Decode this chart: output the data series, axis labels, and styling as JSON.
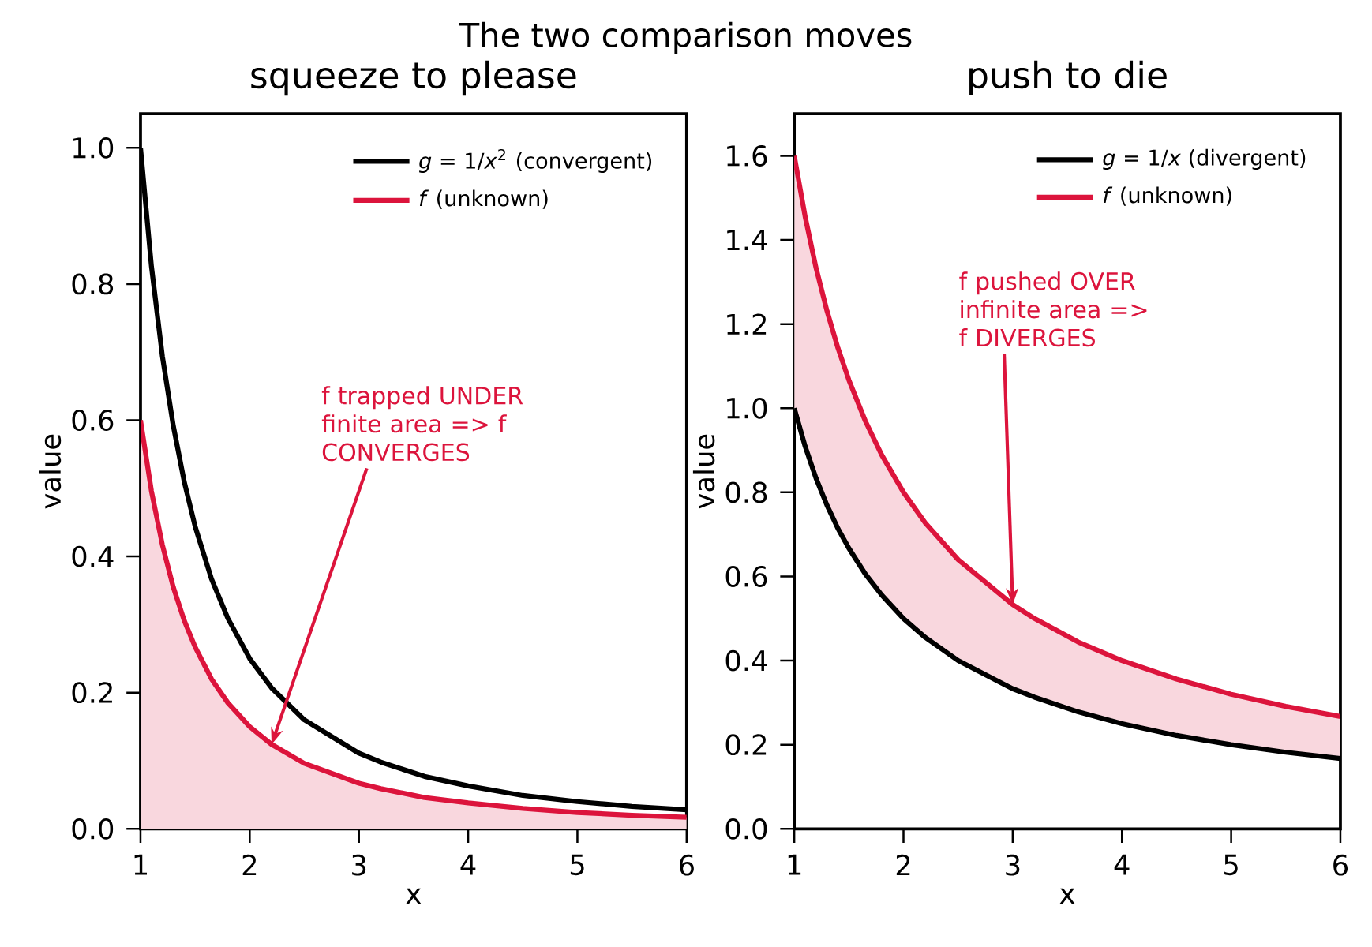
{
  "chart_data": [
    {
      "type": "line",
      "title": "squeeze to please",
      "xlabel": "x",
      "ylabel": "value",
      "xlim": [
        1,
        6
      ],
      "ylim": [
        0,
        1.05
      ],
      "xticks": [
        1,
        2,
        3,
        4,
        5,
        6
      ],
      "yticks": [
        {
          "value": 0,
          "label": "0.0"
        },
        {
          "value": 0.2,
          "label": "0.2"
        },
        {
          "value": 0.4,
          "label": "0.4"
        },
        {
          "value": 0.6,
          "label": "0.6"
        },
        {
          "value": 0.8,
          "label": "0.8"
        },
        {
          "value": 1.0,
          "label": "1.0"
        }
      ],
      "legend": "top right",
      "grid": false,
      "x": [
        1,
        1.1,
        1.2,
        1.3,
        1.4,
        1.5,
        1.65,
        1.8,
        2,
        2.2,
        2.5,
        3,
        3.2,
        3.6,
        4,
        4.5,
        5,
        5.5,
        6
      ],
      "series": [
        {
          "name": "*g* = 1/*x*$^{2}$ (convergent)",
          "color": "#000000",
          "values": [
            1.0,
            0.826,
            0.694,
            0.592,
            0.51,
            0.444,
            0.367,
            0.309,
            0.25,
            0.207,
            0.16,
            0.111,
            0.098,
            0.077,
            0.063,
            0.049,
            0.04,
            0.033,
            0.028
          ]
        },
        {
          "name": "*f* (unknown)",
          "color": "#dc143c",
          "values": [
            0.6,
            0.496,
            0.417,
            0.355,
            0.306,
            0.267,
            0.22,
            0.185,
            0.15,
            0.124,
            0.096,
            0.067,
            0.059,
            0.046,
            0.038,
            0.03,
            0.024,
            0.02,
            0.017
          ],
          "lower": [
            0,
            0,
            0,
            0,
            0,
            0,
            0,
            0,
            0,
            0,
            0,
            0,
            0,
            0,
            0,
            0,
            0,
            0,
            0
          ],
          "upper": [
            0.6,
            0.496,
            0.417,
            0.355,
            0.306,
            0.267,
            0.22,
            0.185,
            0.15,
            0.124,
            0.096,
            0.067,
            0.059,
            0.046,
            0.038,
            0.03,
            0.024,
            0.02,
            0.017
          ]
        }
      ],
      "annotations": [
        "The two comparison moves",
        {
          "text": "f trapped UNDER finite area => f CONVERGES",
          "x": 2.2,
          "y": 0.124
        }
      ]
    },
    {
      "type": "line",
      "title": "push to die",
      "xlabel": "x",
      "ylabel": "value",
      "xlim": [
        1,
        6
      ],
      "ylim": [
        0,
        1.7
      ],
      "xticks": [
        1,
        2,
        3,
        4,
        5,
        6
      ],
      "yticks": [
        {
          "value": 0,
          "label": "0.0"
        },
        {
          "value": 0.2,
          "label": "0.2"
        },
        {
          "value": 0.4,
          "label": "0.4"
        },
        {
          "value": 0.6,
          "label": "0.6"
        },
        {
          "value": 0.8,
          "label": "0.8"
        },
        {
          "value": 1.0,
          "label": "1.0"
        },
        {
          "value": 1.2,
          "label": "1.2"
        },
        {
          "value": 1.4,
          "label": "1.4"
        },
        {
          "value": 1.6,
          "label": "1.6"
        }
      ],
      "legend": "top right",
      "grid": false,
      "x": [
        1,
        1.1,
        1.2,
        1.3,
        1.4,
        1.5,
        1.65,
        1.8,
        2,
        2.2,
        2.5,
        3,
        3.2,
        3.6,
        4,
        4.5,
        5,
        5.5,
        6
      ],
      "series": [
        {
          "name": "*g* = 1/*x* (divergent)",
          "color": "#000000",
          "values": [
            1.0,
            0.909,
            0.833,
            0.769,
            0.714,
            0.667,
            0.606,
            0.556,
            0.5,
            0.455,
            0.4,
            0.333,
            0.313,
            0.278,
            0.25,
            0.222,
            0.2,
            0.182,
            0.167
          ]
        },
        {
          "name": "*f* (unknown)",
          "color": "#dc143c",
          "values": [
            1.6,
            1.455,
            1.333,
            1.231,
            1.143,
            1.067,
            0.97,
            0.889,
            0.8,
            0.727,
            0.64,
            0.533,
            0.5,
            0.444,
            0.4,
            0.356,
            0.32,
            0.291,
            0.267
          ],
          "lower": [
            1.0,
            0.909,
            0.833,
            0.769,
            0.714,
            0.667,
            0.606,
            0.556,
            0.5,
            0.455,
            0.4,
            0.333,
            0.313,
            0.278,
            0.25,
            0.222,
            0.2,
            0.182,
            0.167
          ],
          "upper": [
            1.6,
            1.455,
            1.333,
            1.231,
            1.143,
            1.067,
            0.97,
            0.889,
            0.8,
            0.727,
            0.64,
            0.533,
            0.5,
            0.444,
            0.4,
            0.356,
            0.32,
            0.291,
            0.267
          ]
        }
      ],
      "annotations": [
        {
          "text": "f pushed OVER infinite area => f DIVERGES",
          "x": 3.0,
          "y": 0.533
        }
      ]
    }
  ]
}
